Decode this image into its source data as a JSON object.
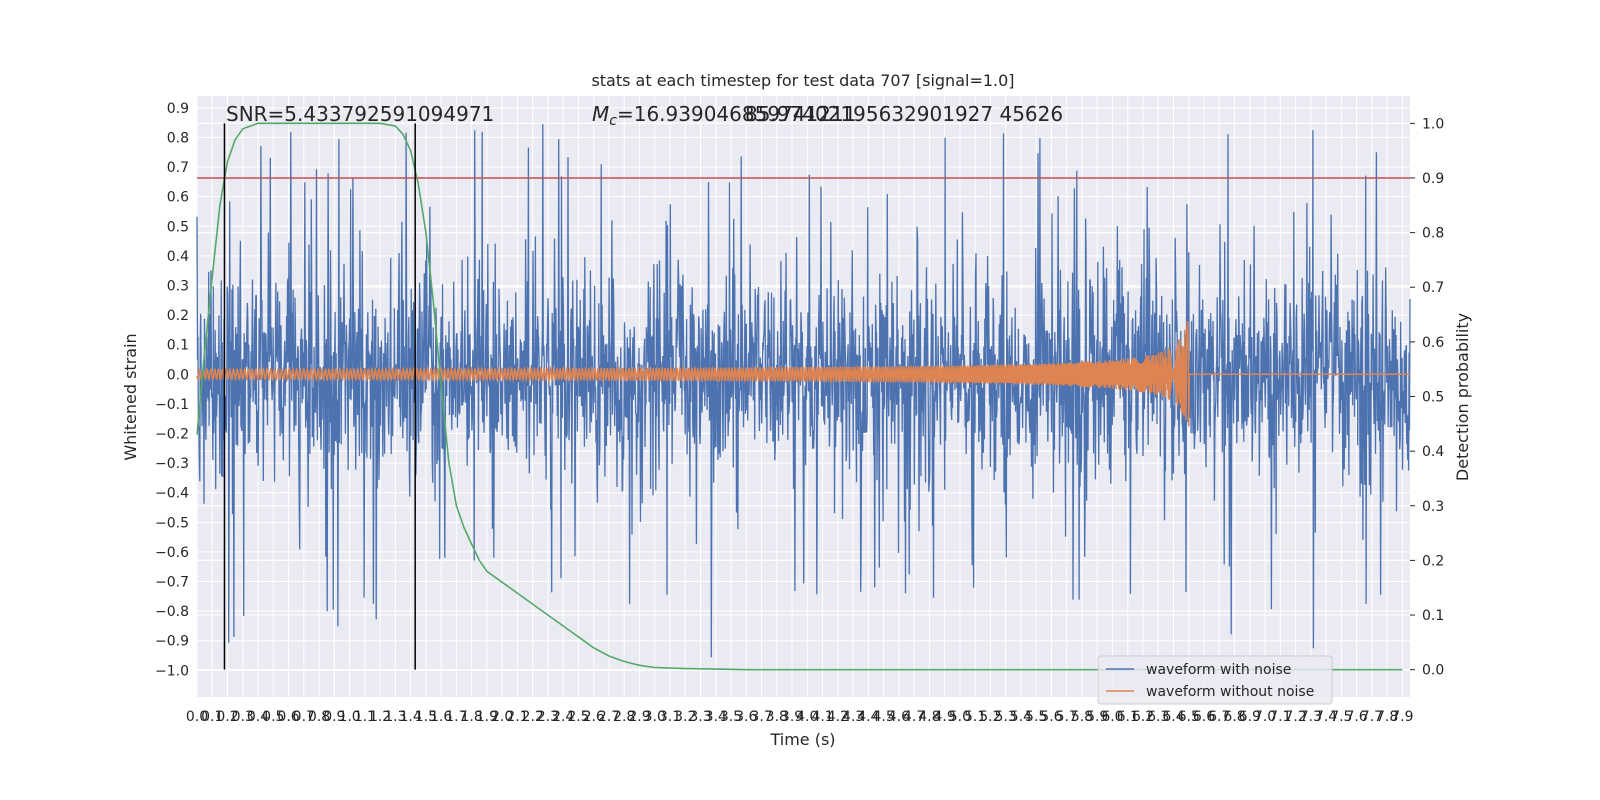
{
  "chart_data": {
    "type": "line",
    "title": "stats at each timestep for test data 707 [signal=1.0]",
    "xlabel": "Time (s)",
    "ylabel": "Whitened strain",
    "ylabel_right": "Detection probability",
    "xlim": [
      0.0,
      7.95
    ],
    "ylim": [
      -1.09,
      0.94
    ],
    "ylim_right": [
      -0.05,
      1.05
    ],
    "x_ticks": [
      "0.0",
      "0.1",
      "0.2",
      "0.3",
      "0.4",
      "0.5",
      "0.6",
      "0.7",
      "0.8",
      "0.9",
      "1.0",
      "1.1",
      "1.2",
      "1.3",
      "1.4",
      "1.5",
      "1.6",
      "1.7",
      "1.8",
      "1.9",
      "2.0",
      "2.1",
      "2.2",
      "2.3",
      "2.4",
      "2.5",
      "2.6",
      "2.7",
      "2.8",
      "2.9",
      "3.0",
      "3.1",
      "3.2",
      "3.3",
      "3.4",
      "3.5",
      "3.6",
      "3.7",
      "3.8",
      "3.9",
      "4.0",
      "4.1",
      "4.2",
      "4.3",
      "4.4",
      "4.5",
      "4.6",
      "4.7",
      "4.8",
      "4.9",
      "5.0",
      "5.1",
      "5.2",
      "5.3",
      "5.4",
      "5.5",
      "5.6",
      "5.7",
      "5.8",
      "5.9",
      "6.0",
      "6.1",
      "6.2",
      "6.3",
      "6.4",
      "6.5",
      "6.6",
      "6.7",
      "6.8",
      "6.9",
      "7.0",
      "7.1",
      "7.2",
      "7.3",
      "7.4",
      "7.5",
      "7.6",
      "7.7",
      "7.8",
      "7.9"
    ],
    "y_ticks": [
      "0.9",
      "0.8",
      "0.7",
      "0.6",
      "0.5",
      "0.4",
      "0.3",
      "0.2",
      "0.1",
      "0.0",
      "−0.1",
      "−0.2",
      "−0.3",
      "−0.4",
      "−0.5",
      "−0.6",
      "−0.7",
      "−0.8",
      "−0.9",
      "−1.0"
    ],
    "y_ticks_right": [
      "1.0",
      "0.9",
      "0.8",
      "0.7",
      "0.6",
      "0.5",
      "0.4",
      "0.3",
      "0.2",
      "0.1",
      "0.0"
    ],
    "annotations": {
      "snr": "SNR=5.433792591094971",
      "mc_prefix": "M",
      "mc_sub": "c",
      "mc_value": "=16.939046859741211",
      "mc_overlap": "85.97402195632901927 45626"
    },
    "vlines_x": [
      0.18,
      1.43
    ],
    "threshold_probability": 0.9,
    "series": [
      {
        "name": "waveform with noise",
        "color": "#4c72b0",
        "description_values": "noise band approx ±0.3 with spikes to ±0.85",
        "noise_envelope": [
          -0.3,
          0.3
        ],
        "spike_range": [
          -1.0,
          0.85
        ]
      },
      {
        "name": "waveform without noise",
        "color": "#dd8452",
        "chirp_end_time": 6.5,
        "chirp_peak_amplitude": 0.23
      },
      {
        "name": "detection probability",
        "color": "#55a868",
        "x": [
          0.0,
          0.05,
          0.1,
          0.15,
          0.2,
          0.25,
          0.3,
          0.35,
          0.4,
          0.5,
          0.6,
          0.8,
          1.0,
          1.2,
          1.3,
          1.35,
          1.4,
          1.45,
          1.5,
          1.55,
          1.6,
          1.65,
          1.7,
          1.75,
          1.8,
          1.85,
          1.9,
          2.0,
          2.2,
          2.4,
          2.6,
          2.7,
          2.8,
          2.9,
          3.0,
          3.2,
          3.4,
          3.6,
          4.0,
          5.0,
          6.0,
          7.0,
          7.9
        ],
        "values": [
          0.43,
          0.58,
          0.72,
          0.85,
          0.93,
          0.97,
          0.99,
          0.995,
          1.0,
          1.0,
          1.0,
          1.0,
          1.0,
          1.0,
          0.995,
          0.98,
          0.95,
          0.89,
          0.8,
          0.67,
          0.52,
          0.38,
          0.3,
          0.26,
          0.23,
          0.2,
          0.18,
          0.16,
          0.12,
          0.08,
          0.04,
          0.025,
          0.015,
          0.008,
          0.004,
          0.002,
          0.001,
          0.0,
          0.0,
          0.0,
          0.0,
          0.0,
          0.0
        ]
      }
    ],
    "legend": {
      "placement": "lower-right",
      "entries": [
        "waveform with noise",
        "waveform without noise"
      ]
    },
    "colors": {
      "background": "#eaeaf2",
      "grid": "#ffffff",
      "threshold": "#c44e52",
      "vline": "#000000"
    }
  }
}
